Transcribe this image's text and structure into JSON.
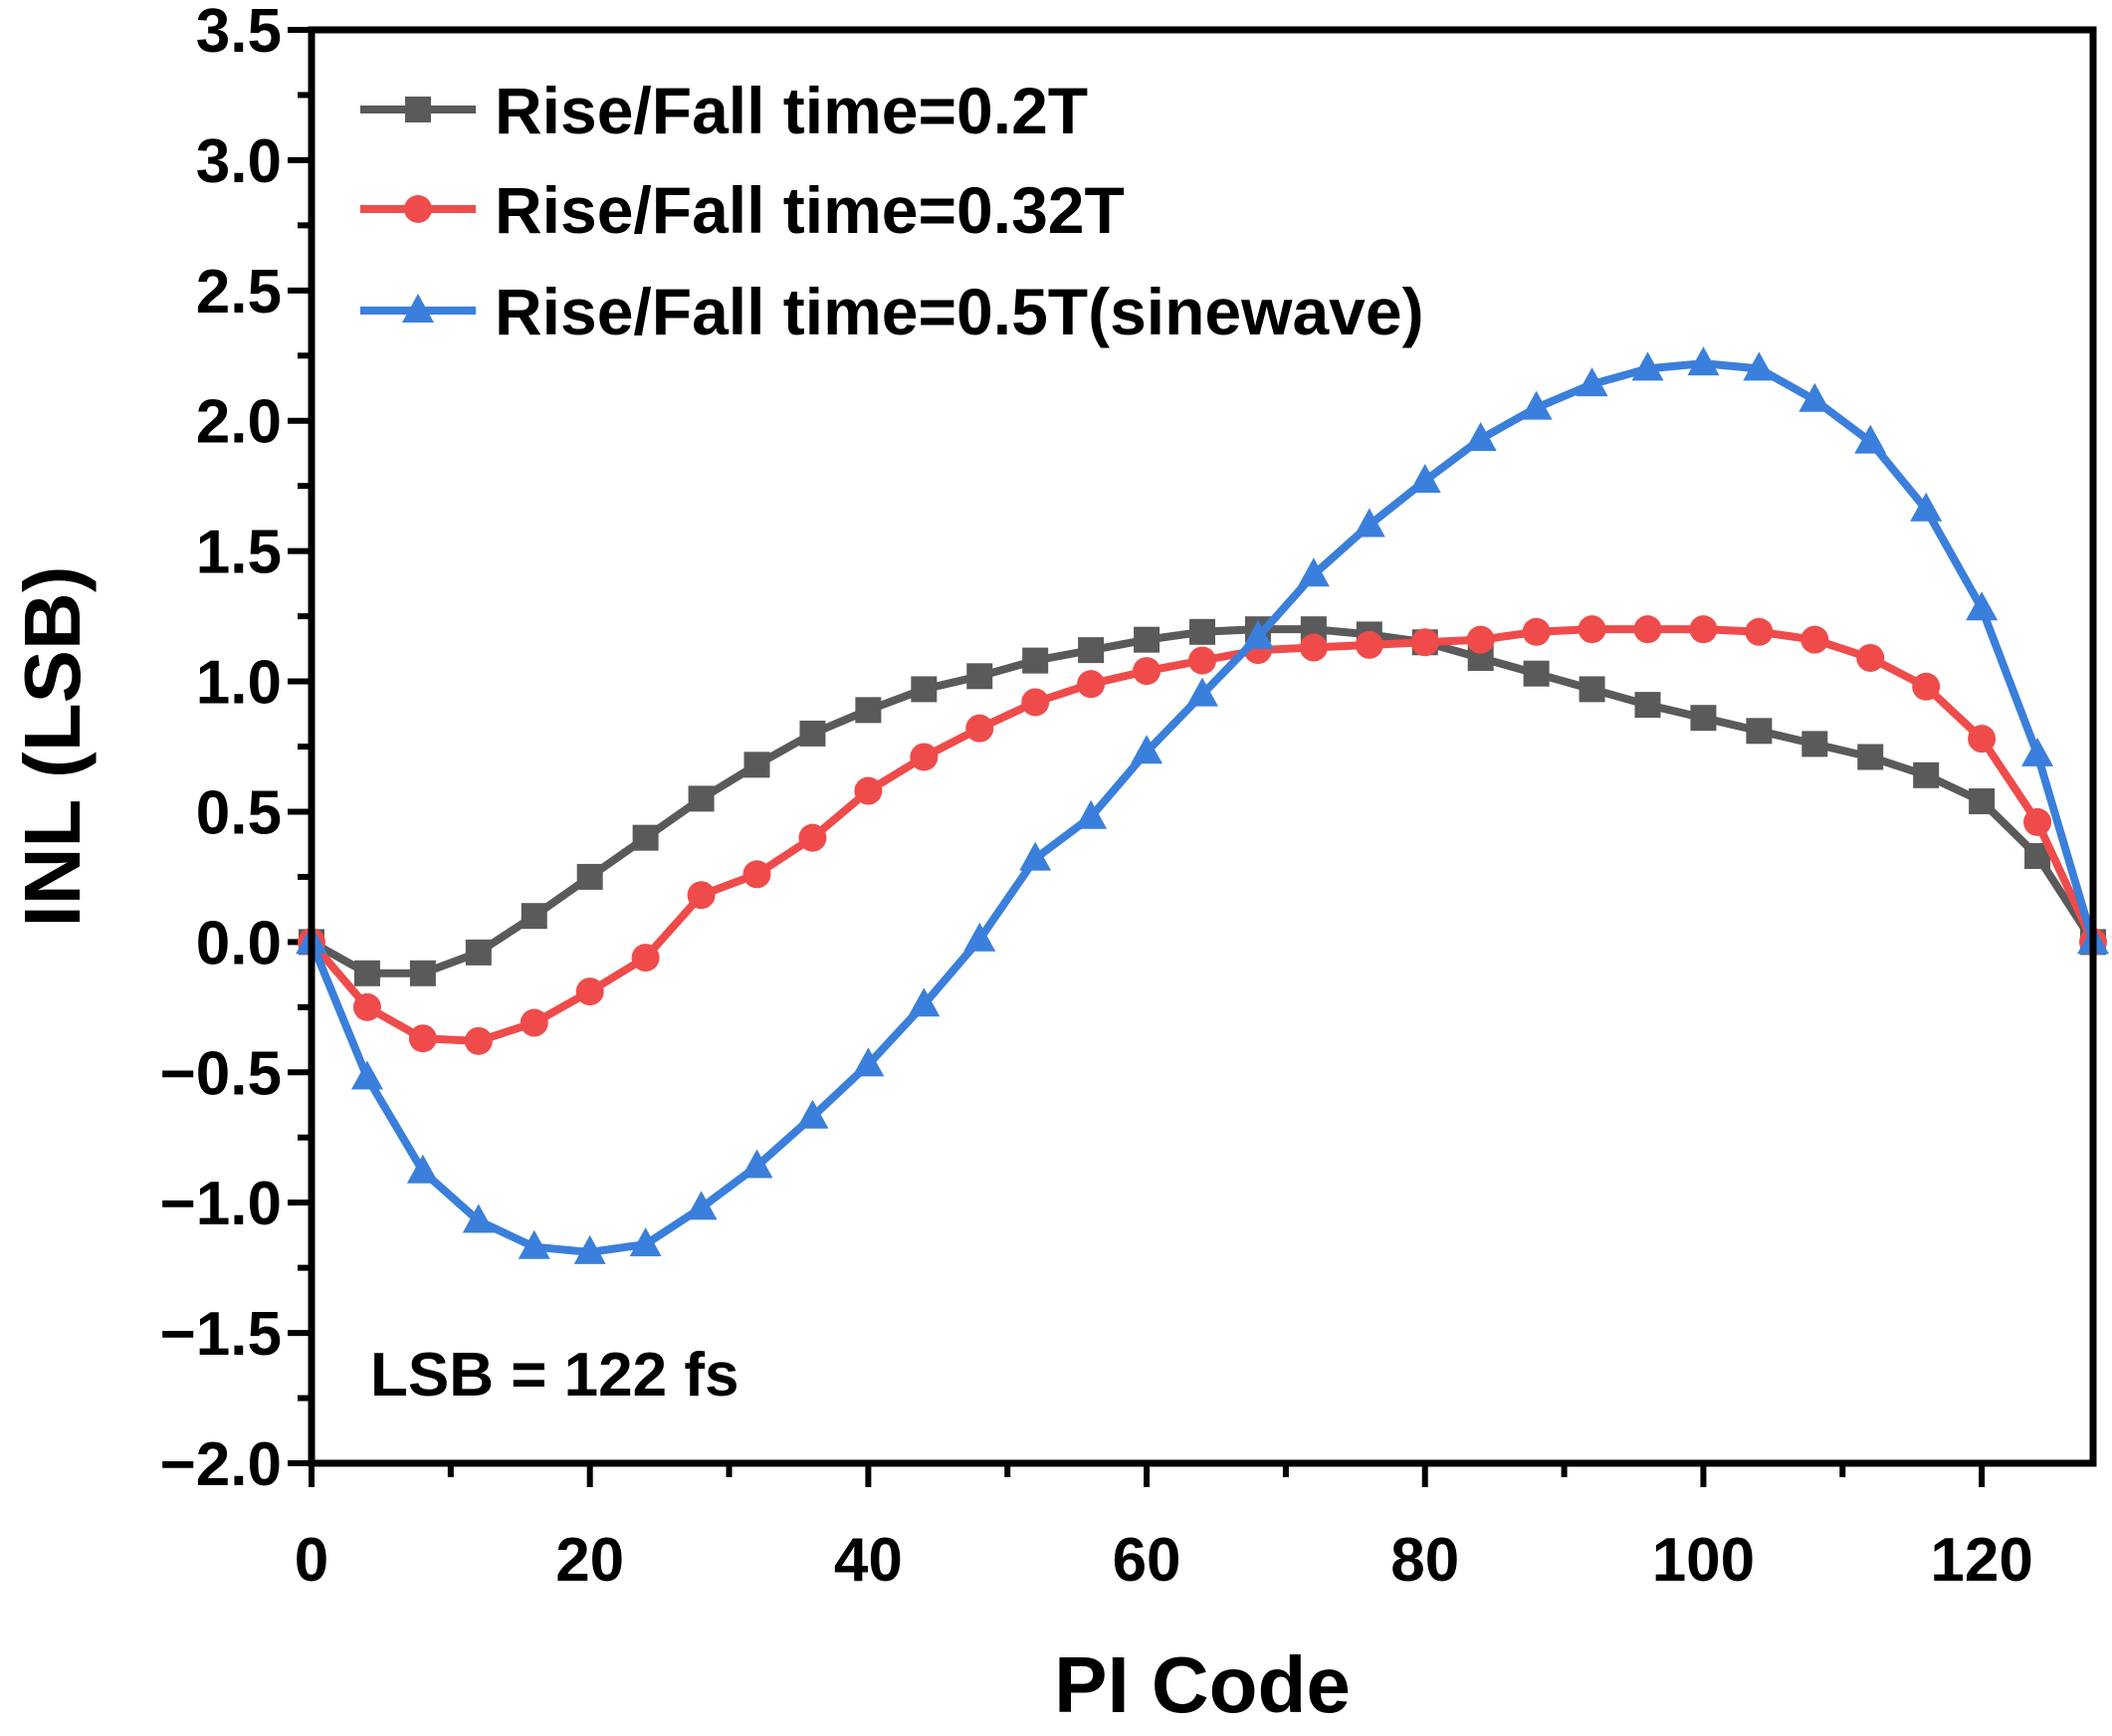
{
  "chart_data": {
    "type": "line",
    "xlabel": "PI Code",
    "ylabel": "INL (LSB)",
    "xlim": [
      0,
      128
    ],
    "ylim": [
      -2.0,
      3.5
    ],
    "x_ticks": [
      0,
      20,
      40,
      60,
      80,
      100,
      120
    ],
    "y_ticks": [
      -2.0,
      -1.5,
      -1.0,
      -0.5,
      0.0,
      0.5,
      1.0,
      1.5,
      2.0,
      2.5,
      3.0,
      3.5
    ],
    "x_tick_labels": [
      "0",
      "20",
      "40",
      "60",
      "80",
      "100",
      "120"
    ],
    "y_tick_labels": [
      "−2.0",
      "−1.5",
      "−1.0",
      "−0.5",
      "0.0",
      "0.5",
      "1.0",
      "1.5",
      "2.0",
      "2.5",
      "3.0",
      "3.5"
    ],
    "grid": false,
    "legend_position": "top-left",
    "annotation": "LSB = 122 fs",
    "x": [
      0,
      4,
      8,
      12,
      16,
      20,
      24,
      28,
      32,
      36,
      40,
      44,
      48,
      52,
      56,
      60,
      64,
      68,
      72,
      76,
      80,
      84,
      88,
      92,
      96,
      100,
      104,
      108,
      112,
      116,
      120,
      124,
      128
    ],
    "series": [
      {
        "name": "Rise/Fall time=0.2T",
        "color": "#5a5a5a",
        "marker": "square",
        "values": [
          0.0,
          -0.12,
          -0.12,
          -0.04,
          0.1,
          0.25,
          0.4,
          0.55,
          0.68,
          0.8,
          0.89,
          0.97,
          1.02,
          1.08,
          1.12,
          1.16,
          1.19,
          1.2,
          1.2,
          1.18,
          1.15,
          1.09,
          1.03,
          0.97,
          0.91,
          0.86,
          0.81,
          0.76,
          0.71,
          0.64,
          0.54,
          0.33,
          0.0
        ]
      },
      {
        "name": "Rise/Fall time=0.32T",
        "color": "#ef4b4b",
        "marker": "circle",
        "values": [
          0.0,
          -0.25,
          -0.37,
          -0.38,
          -0.31,
          -0.19,
          -0.06,
          0.18,
          0.26,
          0.4,
          0.58,
          0.71,
          0.82,
          0.92,
          0.99,
          1.04,
          1.08,
          1.12,
          1.13,
          1.14,
          1.15,
          1.16,
          1.19,
          1.2,
          1.2,
          1.2,
          1.19,
          1.16,
          1.09,
          0.98,
          0.78,
          0.46,
          0.0
        ]
      },
      {
        "name": "Rise/Fall time=0.5T(sinewave)",
        "color": "#3a7fdb",
        "marker": "triangle",
        "values": [
          0.0,
          -0.52,
          -0.88,
          -1.07,
          -1.17,
          -1.19,
          -1.16,
          -1.02,
          -0.86,
          -0.67,
          -0.47,
          -0.24,
          0.01,
          0.32,
          0.48,
          0.73,
          0.95,
          1.17,
          1.41,
          1.6,
          1.77,
          1.93,
          2.05,
          2.14,
          2.2,
          2.22,
          2.2,
          2.08,
          1.92,
          1.66,
          1.28,
          0.72,
          0.0
        ]
      }
    ]
  }
}
